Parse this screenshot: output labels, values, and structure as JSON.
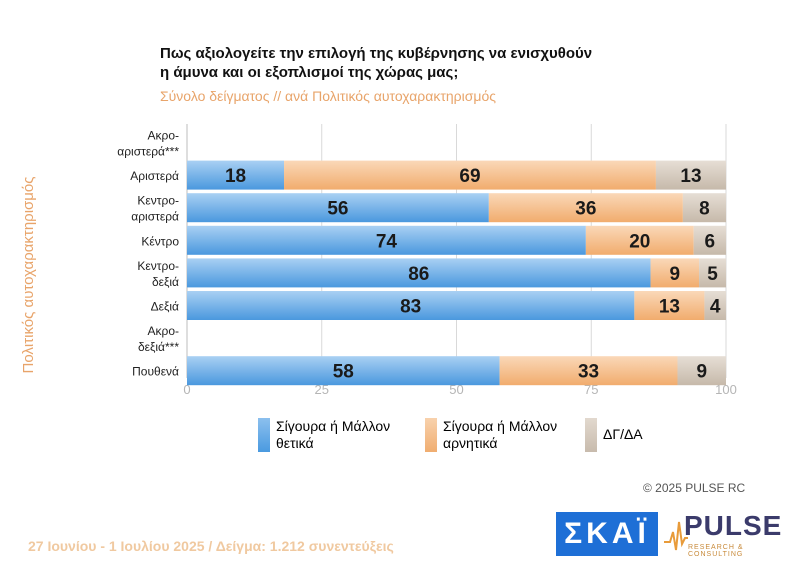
{
  "header": {
    "title_line1": "Πως αξιολογείτε την επιλογή της κυβέρνησης να ενισχυθούν",
    "title_line2": "η άμυνα και οι εξοπλισμοί της χώρας μας;",
    "subtitle": "Σύνολο δείγματος // ανά Πολιτικός αυτοχαρακτηρισμός"
  },
  "chart_data": {
    "type": "bar",
    "orientation": "horizontal",
    "stacked": true,
    "ylabel": "Πολιτικός αυτοχαρακτηρισμός",
    "categories": [
      [
        "Ακρο-",
        "αριστερά***"
      ],
      [
        "Αριστερά"
      ],
      [
        "Κεντρο-",
        "αριστερά"
      ],
      [
        "Κέντρο"
      ],
      [
        "Κεντρο-",
        "δεξιά"
      ],
      [
        "Δεξιά"
      ],
      [
        "Ακρο-",
        "δεξιά***"
      ],
      [
        "Πουθενά"
      ]
    ],
    "series": [
      {
        "name": "Σίγουρα ή Μάλλον θετικά",
        "color": "#6aaee8",
        "values": [
          null,
          18,
          56,
          74,
          86,
          83,
          null,
          58
        ]
      },
      {
        "name": "Σίγουρα ή Μάλλον αρνητικά",
        "color": "#f5c08f",
        "values": [
          null,
          69,
          36,
          20,
          9,
          13,
          null,
          33
        ]
      },
      {
        "name": "ΔΓ/ΔΑ",
        "color": "#d6cbbf",
        "values": [
          null,
          13,
          8,
          6,
          5,
          4,
          null,
          9
        ]
      }
    ],
    "xlim": [
      0,
      100
    ],
    "xticks": [
      "0",
      "25",
      "50",
      "75",
      "100"
    ],
    "grid": true,
    "legend_position": "bottom"
  },
  "legend": [
    {
      "line1": "Σίγουρα ή Μάλλον",
      "line2": "θετικά"
    },
    {
      "line1": "Σίγουρα ή Μάλλον",
      "line2": "αρνητικά"
    },
    {
      "line1": "ΔΓ/ΔΑ",
      "line2": ""
    }
  ],
  "watermark": "PULSE",
  "copyright": "© 2025 PULSE RC",
  "footer": "27 Ιουνίου - 1 Ιουλίου 2025  /  Δείγμα:  1.212 συνεντεύξεις",
  "logos": {
    "skai": "ΣΚΑΪ",
    "pulse": "PULSE",
    "pulse_sub": "RESEARCH & CONSULTING"
  }
}
